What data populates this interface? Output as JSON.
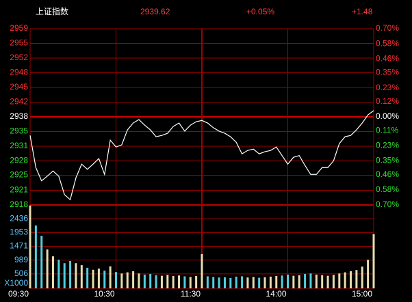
{
  "header": {
    "name": "上证指数",
    "price": "2939.62",
    "change_pct": "+0.05%",
    "change": "+1.48"
  },
  "chart_data": [
    {
      "type": "line",
      "categories": [
        "09:30",
        null,
        null,
        null,
        null,
        null,
        null,
        null,
        null,
        null,
        null,
        null,
        null,
        null,
        null,
        "10:30",
        null,
        null,
        null,
        null,
        null,
        null,
        null,
        null,
        null,
        null,
        null,
        null,
        null,
        null,
        "11:30",
        null,
        null,
        null,
        null,
        null,
        null,
        null,
        null,
        null,
        null,
        null,
        null,
        null,
        null,
        "14:00",
        null,
        null,
        null,
        null,
        null,
        null,
        null,
        null,
        null,
        null,
        null,
        null,
        null,
        null,
        "15:00"
      ],
      "series": [
        {
          "color": "#ffffff",
          "values": [
            2933.8,
            2926.3,
            2923.2,
            2924.3,
            2925.5,
            2924.3,
            2920.0,
            2918.8,
            2923.9,
            2927.1,
            2925.9,
            2927.1,
            2928.4,
            2924.7,
            2932.7,
            2931.1,
            2931.6,
            2935.1,
            2936.7,
            2937.5,
            2936.2,
            2935.1,
            2933.5,
            2933.8,
            2934.3,
            2935.9,
            2936.7,
            2934.8,
            2936.2,
            2937.0,
            2937.3,
            2936.7,
            2935.6,
            2934.8,
            2934.3,
            2933.5,
            2932.2,
            2929.5,
            2930.3,
            2930.6,
            2929.5,
            2930.0,
            2930.3,
            2931.1,
            2929.1,
            2927.1,
            2928.7,
            2929.1,
            2926.8,
            2924.7,
            2924.7,
            2926.3,
            2926.3,
            2927.9,
            2931.9,
            2933.5,
            2933.8,
            2935.1,
            2936.7,
            2938.6,
            2939.6
          ]
        }
      ],
      "ylim": [
        2917.57,
        2958.71
      ],
      "yticks": [
        {
          "value": 2958.71,
          "label": "2959"
        },
        {
          "value": 2955.28,
          "label": "2955"
        },
        {
          "value": 2951.85,
          "label": "2952"
        },
        {
          "value": 2948.43,
          "label": "2948"
        },
        {
          "value": 2945.0,
          "label": "2945"
        },
        {
          "value": 2941.57,
          "label": "2942"
        },
        {
          "value": 2938.14,
          "label": "2938"
        },
        {
          "value": 2934.71,
          "label": "2935"
        },
        {
          "value": 2931.28,
          "label": "2931"
        },
        {
          "value": 2927.85,
          "label": "2928"
        },
        {
          "value": 2924.5,
          "label": "2925"
        },
        {
          "value": 2921.0,
          "label": "2921"
        },
        {
          "value": 2917.57,
          "label": "2918"
        }
      ],
      "y2lim": [
        -0.7,
        0.7
      ],
      "y2ticks": [
        {
          "value": 0.7,
          "label": "0.70%"
        },
        {
          "value": 0.58,
          "label": "0.58%"
        },
        {
          "value": 0.46,
          "label": "0.46%"
        },
        {
          "value": 0.35,
          "label": "0.35%"
        },
        {
          "value": 0.23,
          "label": "0.23%"
        },
        {
          "value": 0.12,
          "label": "0.12%"
        },
        {
          "value": 0,
          "label": "0.00%"
        },
        {
          "value": -0.11,
          "label": "0.11%"
        },
        {
          "value": -0.23,
          "label": "0.23%"
        },
        {
          "value": -0.35,
          "label": "0.35%"
        },
        {
          "value": -0.46,
          "label": "0.46%"
        },
        {
          "value": -0.58,
          "label": "0.58%"
        },
        {
          "value": -0.7,
          "label": "0.70%"
        }
      ],
      "grid": true,
      "grid_color": "#a00000"
    },
    {
      "type": "bar",
      "unit_label": "X1000",
      "up_color": "#e8dcb0",
      "down_color": "#50d0e0",
      "values": [
        2900,
        2200,
        1840,
        1360,
        1120,
        1000,
        880,
        960,
        880,
        810,
        720,
        650,
        690,
        620,
        770,
        570,
        520,
        560,
        600,
        520,
        480,
        500,
        460,
        440,
        470,
        430,
        450,
        420,
        400,
        430,
        1200,
        420,
        400,
        380,
        390,
        360,
        410,
        420,
        380,
        400,
        370,
        390,
        410,
        430,
        450,
        480,
        440,
        460,
        500,
        520,
        480,
        460,
        440,
        470,
        520,
        560,
        600,
        640,
        760,
        1000,
        1900
      ],
      "ylim": [
        0,
        2918
      ],
      "yticks": [
        506,
        989,
        1471,
        1953,
        2436
      ]
    }
  ]
}
